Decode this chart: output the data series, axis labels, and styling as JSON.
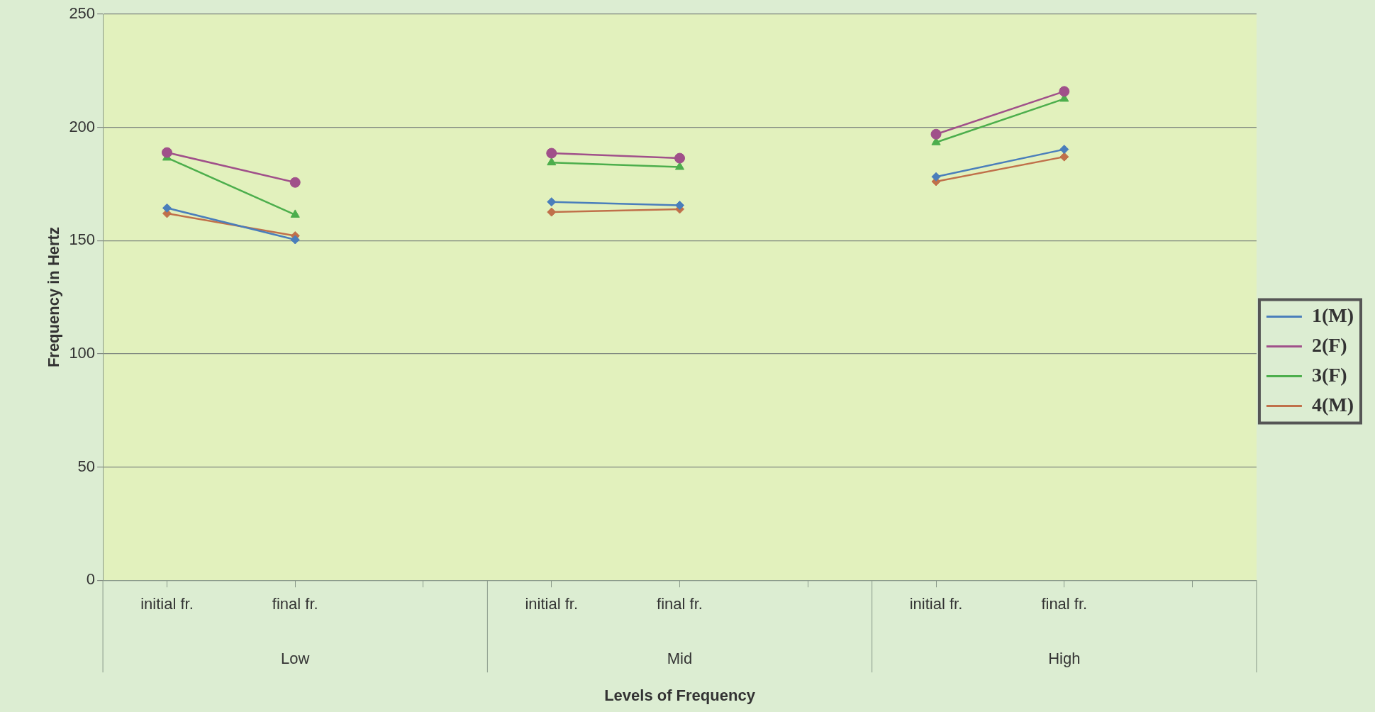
{
  "chart_data": {
    "type": "line",
    "xlabel": "Levels of Frequency",
    "ylabel": "Frequency in Hertz",
    "categories": [
      "initial fr.",
      "final fr.",
      null,
      "initial fr.",
      "final fr.",
      null,
      "initial fr.",
      "final fr.",
      null
    ],
    "annotations": [
      "Low",
      "Mid",
      "High"
    ],
    "ylim": [
      0,
      250
    ],
    "yticks": [
      0,
      50,
      100,
      150,
      200,
      250
    ],
    "grid": "y",
    "legend": "right",
    "series": [
      {
        "name": "1(M)",
        "color": "#4a7ebb",
        "marker": "diamond",
        "values": [
          164.4,
          150.4,
          null,
          167.1,
          165.6,
          null,
          178.2,
          190.3,
          null
        ]
      },
      {
        "name": "2(F)",
        "color": "#a0508a",
        "marker": "circle",
        "values": [
          188.9,
          175.7,
          null,
          188.6,
          186.4,
          null,
          197,
          215.9,
          null
        ]
      },
      {
        "name": "3(F)",
        "color": "#4cae4c",
        "marker": "triangle",
        "values": [
          186.6,
          161.4,
          null,
          184.5,
          182.5,
          null,
          193.4,
          212.6,
          null
        ]
      },
      {
        "name": "4(M)",
        "color": "#c0704a",
        "marker": "diamond",
        "values": [
          162,
          152.1,
          null,
          162.6,
          163.9,
          null,
          176.1,
          187,
          null
        ]
      }
    ]
  }
}
